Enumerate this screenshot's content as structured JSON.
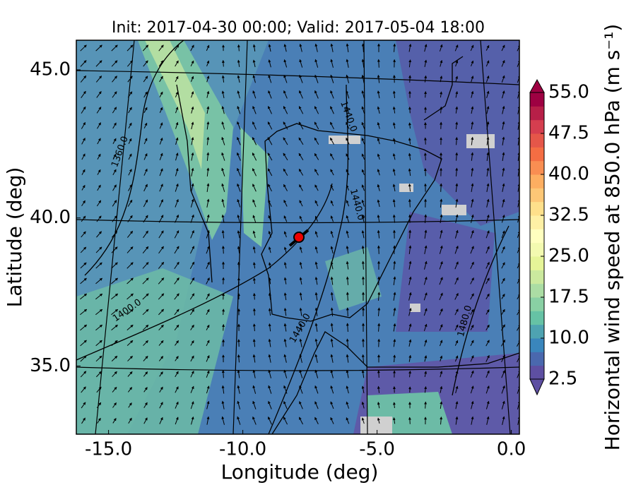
{
  "chart_data": {
    "type": "map",
    "title": "Init: 2017-04-30 00:00; Valid: 2017-05-04 18:00",
    "xlabel": "Longitude (deg)",
    "ylabel": "Latitude (deg)",
    "xlim": [
      -16.2,
      0.3
    ],
    "ylim": [
      32.7,
      46.0
    ],
    "xticks": [
      {
        "value": -15,
        "label": "-15.0"
      },
      {
        "value": -10,
        "label": "-10.0"
      },
      {
        "value": -5,
        "label": "-5.0"
      },
      {
        "value": 0,
        "label": "0.0"
      }
    ],
    "yticks": [
      {
        "value": 35,
        "label": "35.0"
      },
      {
        "value": 40,
        "label": "40.0"
      },
      {
        "value": 45,
        "label": "45.0"
      }
    ],
    "colorbar": {
      "label": "Horizontal wind speed at 850.0 hPa (m s⁻¹)",
      "lim": [
        2.5,
        55
      ],
      "ticks": [
        {
          "value": 2.5,
          "label": "2.5"
        },
        {
          "value": 10,
          "label": "10.0"
        },
        {
          "value": 17.5,
          "label": "17.5"
        },
        {
          "value": 25,
          "label": "25.0"
        },
        {
          "value": 32.5,
          "label": "32.5"
        },
        {
          "value": 40,
          "label": "40.0"
        },
        {
          "value": 47.5,
          "label": "47.5"
        },
        {
          "value": 55,
          "label": "55.0"
        }
      ],
      "colors": [
        "#5e4fa2",
        "#4a68ae",
        "#3a86bc",
        "#4ea3b1",
        "#66c2a5",
        "#89d0a4",
        "#abdda4",
        "#cbe99e",
        "#e6f598",
        "#f3fab0",
        "#ffffbf",
        "#fef0a5",
        "#fee08b",
        "#fdc776",
        "#fdae61",
        "#f98e52",
        "#f46d43",
        "#e55649",
        "#d53e4f",
        "#b71f48",
        "#9e0142"
      ]
    },
    "contour_labels": [
      "1360.0",
      "1440.0",
      "1440.0",
      "1400.0",
      "1440.0",
      "1480.0"
    ]
  }
}
